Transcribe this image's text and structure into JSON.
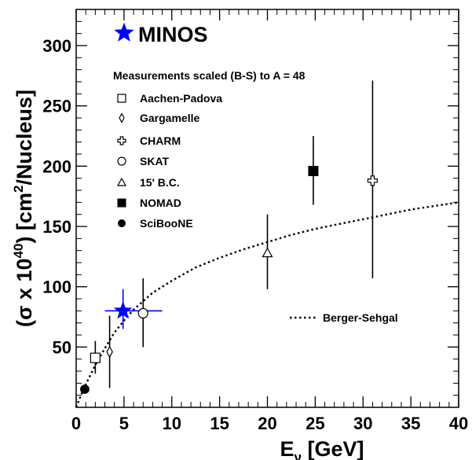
{
  "chart_data": {
    "type": "scatter",
    "title": "",
    "xlabel": "E",
    "xlabel_sub": "ν",
    "xlabel_unit": " [GeV]",
    "ylabel_parts": [
      "(σ x 10",
      "40",
      ") [cm",
      "2",
      "/Nucleus]"
    ],
    "xlim": [
      0,
      40
    ],
    "ylim": [
      0,
      330
    ],
    "xticks": [
      0,
      5,
      10,
      15,
      20,
      25,
      30,
      35,
      40
    ],
    "yticks": [
      50,
      100,
      150,
      200,
      250,
      300
    ],
    "grid": false,
    "legend_header": "Measurements scaled (B-S) to A = 48",
    "series": [
      {
        "name": "MINOS",
        "marker": "star",
        "color": "#0000ff",
        "points": [
          {
            "x": 4.9,
            "y": 80,
            "ylo": 65,
            "yhi": 98,
            "xlo": 3.0,
            "xhi": 9.0
          }
        ]
      },
      {
        "name": "Aachen-Padova",
        "marker": "open-square",
        "color": "#000000",
        "points": [
          {
            "x": 2.0,
            "y": 41,
            "ylo": 28,
            "yhi": 55
          }
        ]
      },
      {
        "name": "Gargamelle",
        "marker": "open-diamond",
        "color": "#000000",
        "points": [
          {
            "x": 3.5,
            "y": 46,
            "ylo": 16,
            "yhi": 76
          }
        ]
      },
      {
        "name": "CHARM",
        "marker": "open-cross",
        "color": "#000000",
        "points": [
          {
            "x": 31.0,
            "y": 188,
            "ylo": 107,
            "yhi": 271
          }
        ]
      },
      {
        "name": "SKAT",
        "marker": "open-circle",
        "color": "#000000",
        "points": [
          {
            "x": 7.0,
            "y": 78,
            "ylo": 50,
            "yhi": 107
          }
        ]
      },
      {
        "name": "15' B.C.",
        "marker": "open-triangle",
        "color": "#000000",
        "points": [
          {
            "x": 20.0,
            "y": 128,
            "ylo": 98,
            "yhi": 160
          }
        ]
      },
      {
        "name": "NOMAD",
        "marker": "filled-square",
        "color": "#000000",
        "points": [
          {
            "x": 24.8,
            "y": 196,
            "ylo": 168,
            "yhi": 225
          }
        ]
      },
      {
        "name": "SciBooNE",
        "marker": "filled-circle",
        "color": "#000000",
        "points": [
          {
            "x": 0.9,
            "y": 15,
            "ylo": 13,
            "yhi": 17
          }
        ]
      }
    ],
    "curve": {
      "name": "Berger-Sehgal",
      "style": "dotted",
      "color": "#000000",
      "x": [
        0.0,
        0.3,
        0.6,
        1.0,
        1.5,
        2.0,
        3.0,
        4.0,
        5.0,
        6.0,
        8.0,
        10.0,
        12.5,
        15.0,
        17.5,
        20.0,
        22.5,
        25.0,
        27.5,
        30.0,
        32.5,
        35.0,
        37.5,
        40.0
      ],
      "y": [
        0,
        6,
        12,
        19,
        27,
        35,
        49,
        62,
        72,
        81,
        95,
        105,
        116,
        124,
        131,
        137,
        143,
        148,
        152,
        156,
        160,
        164,
        167,
        170
      ]
    }
  }
}
